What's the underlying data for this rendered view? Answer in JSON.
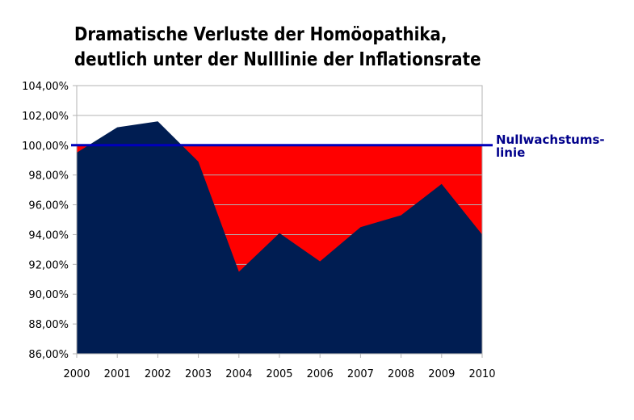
{
  "chart_data": {
    "type": "area",
    "title_lines": [
      "Dramatische Verluste der Homöopathika,",
      "deutlich unter der Nulllinie der Inflationsrate"
    ],
    "x": [
      "2000",
      "2001",
      "2002",
      "2003",
      "2004",
      "2005",
      "2006",
      "2007",
      "2008",
      "2009",
      "2010"
    ],
    "y_ticks": [
      "86,00%",
      "88,00%",
      "90,00%",
      "92,00%",
      "94,00%",
      "96,00%",
      "98,00%",
      "100,00%",
      "102,00%",
      "104,00%"
    ],
    "ylim": [
      86,
      104
    ],
    "ytick_step": 2,
    "y_unit": "%",
    "grid": true,
    "series": [
      {
        "values": [
          99.5,
          101.2,
          101.6,
          98.9,
          91.5,
          94.1,
          92.2,
          94.5,
          95.3,
          97.4,
          94.0
        ],
        "color": "#001d52"
      }
    ],
    "below_reference_fill": "#ff0000",
    "reference_line": {
      "value": 100,
      "label_lines": [
        "Nullwachstums-",
        "linie"
      ],
      "color": "#0000bb"
    },
    "legend": "none"
  }
}
